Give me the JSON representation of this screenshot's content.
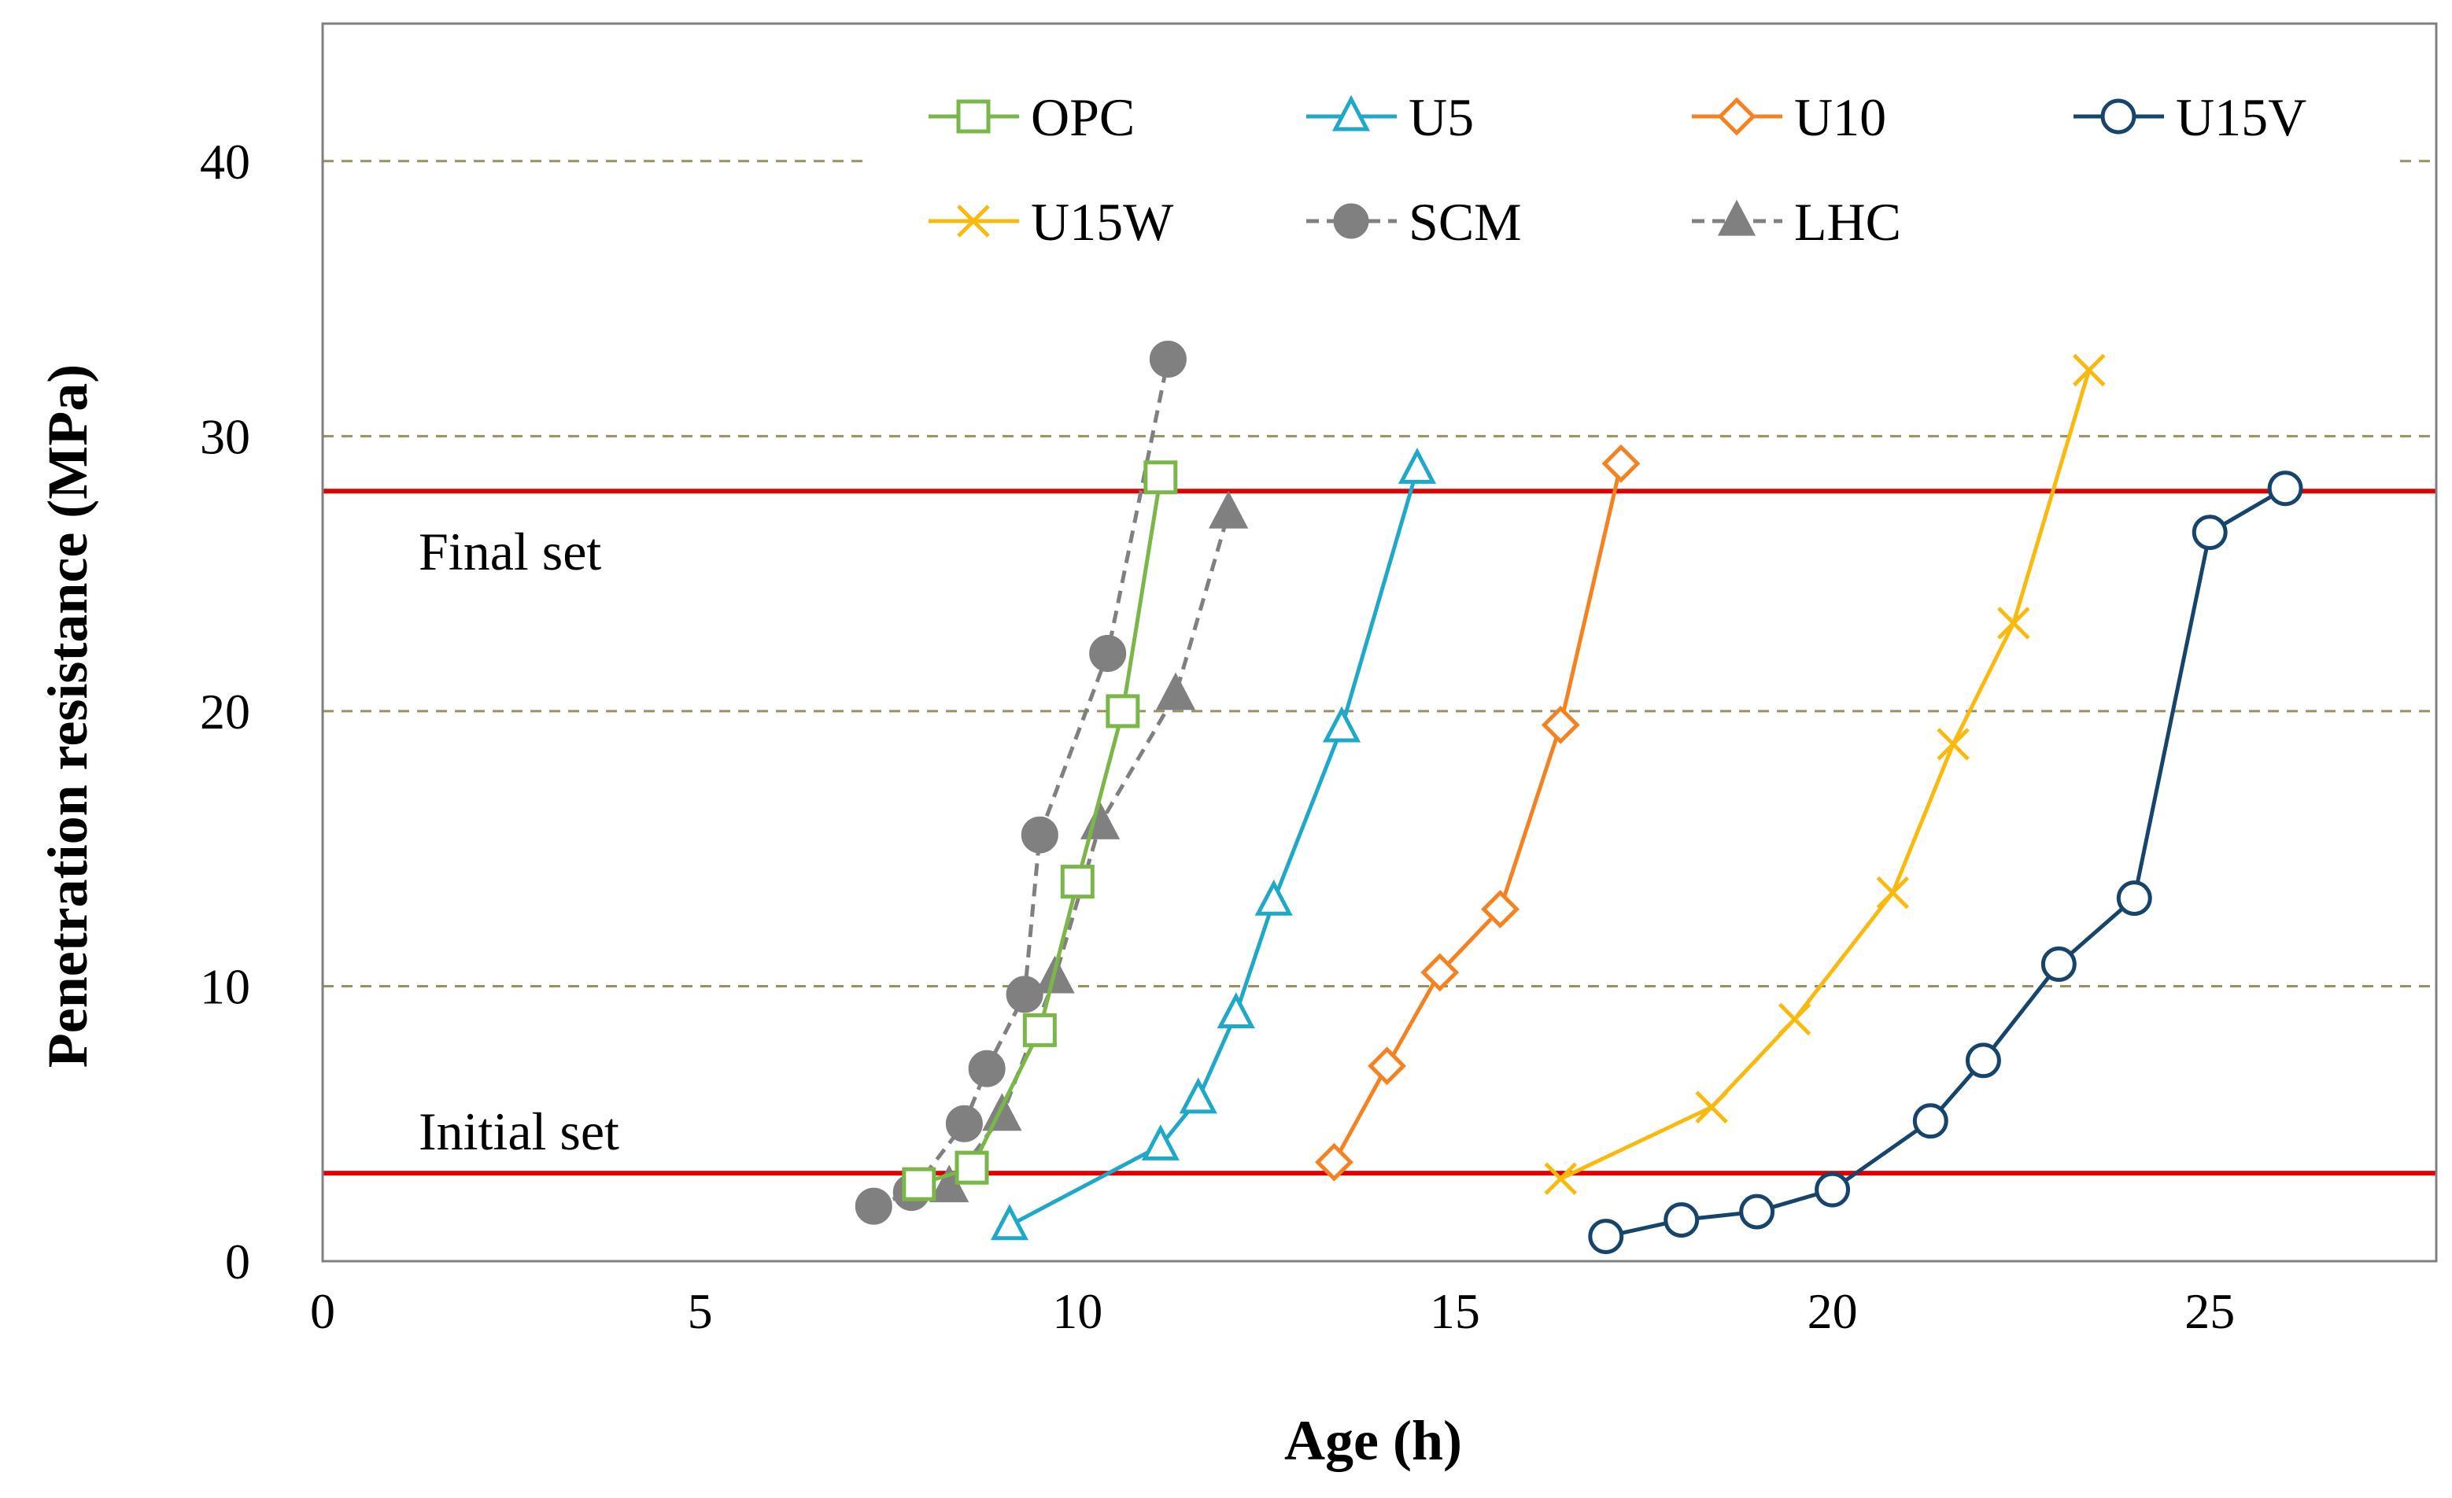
{
  "chart_data": {
    "type": "line",
    "title": "",
    "xlabel": "Age (h)",
    "ylabel": "Penetration resistance (MPa)",
    "xlim": [
      0,
      28
    ],
    "ylim": [
      0,
      45
    ],
    "xticks": [
      0,
      5,
      10,
      15,
      20,
      25
    ],
    "yticks": [
      0,
      10,
      20,
      30,
      40
    ],
    "grid": "horizontal dashed at 10, 20, 30, 40",
    "legend_position": "top",
    "series": [
      {
        "name": "OPC",
        "color": "#7AB648",
        "marker": "square",
        "filled": false,
        "dashed": false,
        "x": [
          7.9,
          8.6,
          9.5,
          10.0,
          10.6,
          11.1
        ],
        "y": [
          2.8,
          3.4,
          8.4,
          13.8,
          20.0,
          28.5
        ]
      },
      {
        "name": "U5",
        "color": "#1FA8C8",
        "marker": "triangle",
        "filled": false,
        "dashed": false,
        "x": [
          9.1,
          11.1,
          11.6,
          12.1,
          12.6,
          13.5,
          14.5
        ],
        "y": [
          1.3,
          4.2,
          5.9,
          9.0,
          13.1,
          19.4,
          28.8
        ]
      },
      {
        "name": "U10",
        "color": "#F58220",
        "marker": "diamond",
        "filled": false,
        "dashed": false,
        "x": [
          13.4,
          14.1,
          14.8,
          15.6,
          16.4,
          17.2
        ],
        "y": [
          3.6,
          7.1,
          10.5,
          12.8,
          19.5,
          29.0
        ]
      },
      {
        "name": "U15V",
        "color": "#17446B",
        "marker": "circle",
        "filled": false,
        "dashed": false,
        "x": [
          17.0,
          18.0,
          19.0,
          20.0,
          21.3,
          22.0,
          23.0,
          24.0,
          25.0,
          26.0
        ],
        "y": [
          0.9,
          1.5,
          1.8,
          2.6,
          5.1,
          7.3,
          10.8,
          13.2,
          26.5,
          28.1
        ]
      },
      {
        "name": "U15W",
        "color": "#F9BA0F",
        "marker": "x",
        "filled": false,
        "dashed": false,
        "x": [
          16.4,
          18.4,
          19.5,
          20.8,
          21.6,
          22.4,
          23.4
        ],
        "y": [
          3.0,
          5.6,
          8.8,
          13.4,
          18.8,
          23.2,
          32.4
        ]
      },
      {
        "name": "SCM",
        "color": "#808080",
        "marker": "circle",
        "filled": true,
        "dashed": true,
        "x": [
          7.3,
          7.8,
          8.5,
          8.8,
          9.3,
          9.5,
          10.4,
          11.2
        ],
        "y": [
          2.0,
          2.5,
          5.0,
          7.0,
          9.7,
          15.5,
          22.1,
          32.8
        ]
      },
      {
        "name": "LHC",
        "color": "#808080",
        "marker": "triangle",
        "filled": true,
        "dashed": true,
        "x": [
          8.3,
          9.0,
          9.7,
          10.3,
          11.3,
          12.0
        ],
        "y": [
          2.7,
          5.3,
          10.3,
          15.9,
          20.6,
          27.2
        ]
      }
    ],
    "reference_lines": [
      {
        "label": "Final set",
        "y": 28.0,
        "color": "#E00000"
      },
      {
        "label": "Initial set",
        "y": 3.2,
        "color": "#E00000"
      }
    ]
  }
}
